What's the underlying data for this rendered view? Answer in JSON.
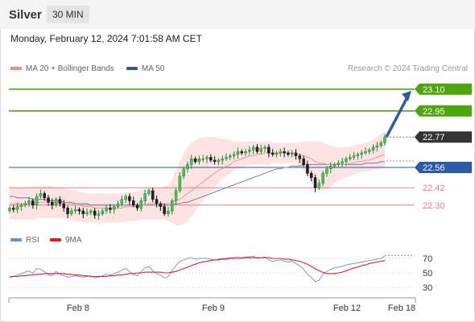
{
  "header": {
    "symbol": "Silver",
    "timeframe": "30 MIN"
  },
  "datetime": "Monday, February 12, 2024 7:01:58 AM CET",
  "legend": {
    "ma20_label": "MA 20 + Bollinger Bands",
    "ma50_label": "MA 50",
    "rsi_label": "RSI",
    "rsi_ma_label": "9MA"
  },
  "credit": "Research © 2024 Trading Central",
  "colors": {
    "green": "#4da60c",
    "blue": "#2a5aa8",
    "red": "#f07c7c",
    "dark": "#333333",
    "bollinger_fill": "#fde3e1",
    "rsi_line": "#6a8fd8",
    "rsi_ma": "#e02020",
    "arrow": "#2a5aa8"
  },
  "chart_data": [
    {
      "type": "line",
      "subtype": "candlestick",
      "title": "",
      "x_ticks": [
        "Feb 8",
        "Feb 9",
        "Feb 12",
        "Feb 18"
      ],
      "ylim": [
        22.16,
        23.16
      ],
      "levels": [
        {
          "value": 23.1,
          "label": "23.10",
          "kind": "resistance",
          "color": "#4da60c"
        },
        {
          "value": 22.95,
          "label": "22.95",
          "kind": "resistance",
          "color": "#4da60c"
        },
        {
          "value": 22.77,
          "label": "22.77",
          "kind": "last",
          "color": "#333333"
        },
        {
          "value": 22.56,
          "label": "22.56",
          "kind": "pivot",
          "color": "#2a5aa8"
        },
        {
          "value": 22.42,
          "label": "22.42",
          "kind": "support",
          "color": "#f07c7c"
        },
        {
          "value": 22.3,
          "label": "22.30",
          "kind": "support",
          "color": "#f07c7c"
        }
      ],
      "close": [
        22.28,
        22.27,
        22.29,
        22.3,
        22.31,
        22.33,
        22.3,
        22.36,
        22.38,
        22.35,
        22.32,
        22.3,
        22.34,
        22.31,
        22.28,
        22.24,
        22.26,
        22.27,
        22.26,
        22.24,
        22.25,
        22.26,
        22.23,
        22.24,
        22.26,
        22.28,
        22.27,
        22.29,
        22.31,
        22.34,
        22.36,
        22.33,
        22.3,
        22.28,
        22.33,
        22.38,
        22.4,
        22.34,
        22.31,
        22.29,
        22.24,
        22.26,
        22.33,
        22.4,
        22.5,
        22.55,
        22.58,
        22.62,
        22.6,
        22.62,
        22.62,
        22.63,
        22.61,
        22.6,
        22.61,
        22.62,
        22.63,
        22.64,
        22.65,
        22.67,
        22.66,
        22.67,
        22.68,
        22.7,
        22.67,
        22.69,
        22.7,
        22.66,
        22.65,
        22.66,
        22.67,
        22.66,
        22.65,
        22.66,
        22.64,
        22.62,
        22.58,
        22.52,
        22.49,
        22.42,
        22.45,
        22.52,
        22.55,
        22.57,
        22.58,
        22.59,
        22.6,
        22.62,
        22.63,
        22.64,
        22.65,
        22.66,
        22.67,
        22.68,
        22.7,
        22.71,
        22.73,
        22.77
      ],
      "ma20": [
        22.31,
        22.31,
        22.31,
        22.31,
        22.31,
        22.31,
        22.31,
        22.32,
        22.32,
        22.32,
        22.32,
        22.32,
        22.32,
        22.32,
        22.32,
        22.31,
        22.31,
        22.3,
        22.3,
        22.29,
        22.29,
        22.29,
        22.28,
        22.28,
        22.28,
        22.28,
        22.28,
        22.28,
        22.28,
        22.28,
        22.29,
        22.29,
        22.29,
        22.29,
        22.3,
        22.3,
        22.31,
        22.31,
        22.31,
        22.31,
        22.31,
        22.31,
        22.32,
        22.33,
        22.34,
        22.36,
        22.38,
        22.4,
        22.42,
        22.44,
        22.46,
        22.48,
        22.5,
        22.52,
        22.54,
        22.55,
        22.57,
        22.58,
        22.6,
        22.61,
        22.62,
        22.63,
        22.64,
        22.64,
        22.65,
        22.65,
        22.66,
        22.66,
        22.66,
        22.66,
        22.66,
        22.66,
        22.66,
        22.66,
        22.66,
        22.65,
        22.64,
        22.63,
        22.62,
        22.6,
        22.59,
        22.59,
        22.58,
        22.58,
        22.58,
        22.58,
        22.58,
        22.58,
        22.59,
        22.59,
        22.6,
        22.6,
        22.61,
        22.61,
        22.62,
        22.63,
        22.64,
        22.65
      ],
      "ma50": [
        22.36,
        22.36,
        22.35,
        22.35,
        22.35,
        22.35,
        22.34,
        22.34,
        22.34,
        22.34,
        22.33,
        22.33,
        22.33,
        22.33,
        22.32,
        22.32,
        22.32,
        22.31,
        22.31,
        22.31,
        22.31,
        22.3,
        22.3,
        22.3,
        22.3,
        22.3,
        22.3,
        22.3,
        22.3,
        22.3,
        22.3,
        22.3,
        22.3,
        22.3,
        22.3,
        22.3,
        22.3,
        22.3,
        22.3,
        22.3,
        22.3,
        22.3,
        22.3,
        22.31,
        22.31,
        22.32,
        22.32,
        22.33,
        22.34,
        22.35,
        22.36,
        22.37,
        22.38,
        22.39,
        22.4,
        22.41,
        22.42,
        22.43,
        22.44,
        22.45,
        22.46,
        22.47,
        22.48,
        22.49,
        22.5,
        22.51,
        22.52,
        22.53,
        22.54,
        22.55,
        22.55,
        22.56,
        22.56,
        22.57,
        22.57,
        22.57,
        22.58,
        22.58,
        22.58,
        22.58,
        22.58,
        22.58,
        22.58,
        22.58,
        22.58,
        22.58,
        22.58,
        22.58,
        22.58,
        22.58,
        22.58,
        22.58,
        22.59,
        22.59,
        22.59,
        22.59,
        22.6,
        22.6
      ],
      "bollinger_upper": [
        22.42,
        22.42,
        22.42,
        22.42,
        22.42,
        22.42,
        22.43,
        22.43,
        22.43,
        22.43,
        22.43,
        22.43,
        22.42,
        22.42,
        22.42,
        22.41,
        22.4,
        22.4,
        22.39,
        22.39,
        22.38,
        22.38,
        22.38,
        22.38,
        22.38,
        22.38,
        22.38,
        22.38,
        22.38,
        22.38,
        22.39,
        22.39,
        22.39,
        22.4,
        22.4,
        22.41,
        22.42,
        22.42,
        22.42,
        22.42,
        22.43,
        22.44,
        22.48,
        22.54,
        22.6,
        22.66,
        22.7,
        22.73,
        22.75,
        22.76,
        22.77,
        22.77,
        22.77,
        22.77,
        22.76,
        22.76,
        22.75,
        22.75,
        22.74,
        22.74,
        22.74,
        22.74,
        22.74,
        22.74,
        22.74,
        22.74,
        22.74,
        22.74,
        22.73,
        22.73,
        22.73,
        22.73,
        22.73,
        22.73,
        22.73,
        22.73,
        22.74,
        22.74,
        22.74,
        22.74,
        22.74,
        22.73,
        22.72,
        22.71,
        22.7,
        22.7,
        22.7,
        22.7,
        22.7,
        22.71,
        22.72,
        22.72,
        22.73,
        22.74,
        22.75,
        22.77,
        22.79,
        22.81
      ],
      "bollinger_lower": [
        22.2,
        22.2,
        22.2,
        22.2,
        22.2,
        22.2,
        22.2,
        22.21,
        22.21,
        22.21,
        22.21,
        22.21,
        22.21,
        22.21,
        22.21,
        22.2,
        22.2,
        22.19,
        22.19,
        22.18,
        22.18,
        22.18,
        22.18,
        22.18,
        22.18,
        22.18,
        22.18,
        22.18,
        22.18,
        22.18,
        22.19,
        22.19,
        22.19,
        22.19,
        22.2,
        22.2,
        22.2,
        22.2,
        22.2,
        22.2,
        22.2,
        22.19,
        22.18,
        22.16,
        22.16,
        22.17,
        22.19,
        22.22,
        22.26,
        22.3,
        22.33,
        22.36,
        22.39,
        22.42,
        22.45,
        22.48,
        22.5,
        22.52,
        22.54,
        22.55,
        22.56,
        22.57,
        22.58,
        22.58,
        22.58,
        22.58,
        22.58,
        22.58,
        22.59,
        22.59,
        22.59,
        22.59,
        22.59,
        22.59,
        22.59,
        22.57,
        22.54,
        22.5,
        22.46,
        22.42,
        22.4,
        22.4,
        22.41,
        22.43,
        22.45,
        22.47,
        22.48,
        22.49,
        22.5,
        22.51,
        22.52,
        22.53,
        22.53,
        22.54,
        22.54,
        22.55,
        22.55,
        22.56
      ],
      "target_arrow": {
        "from": 22.77,
        "to": 23.1
      }
    },
    {
      "type": "line",
      "title": "",
      "y_ticks": [
        70,
        50,
        30
      ],
      "ylim": [
        20,
        80
      ],
      "rsi": [
        43,
        45,
        47,
        49,
        51,
        53,
        49,
        56,
        55,
        52,
        48,
        46,
        52,
        48,
        46,
        44,
        45,
        46,
        45,
        44,
        45,
        46,
        43,
        44,
        46,
        48,
        47,
        49,
        51,
        54,
        56,
        52,
        48,
        46,
        52,
        57,
        59,
        53,
        49,
        47,
        43,
        45,
        53,
        60,
        66,
        68,
        70,
        71,
        69,
        70,
        70,
        70,
        69,
        68,
        69,
        70,
        70,
        71,
        71,
        72,
        71,
        72,
        72,
        73,
        70,
        71,
        72,
        68,
        66,
        67,
        68,
        66,
        65,
        66,
        63,
        60,
        55,
        48,
        44,
        38,
        40,
        48,
        52,
        55,
        57,
        58,
        59,
        61,
        62,
        63,
        64,
        65,
        66,
        67,
        68,
        69,
        70,
        73
      ],
      "rsi_ma": [
        45,
        45,
        45,
        46,
        46,
        47,
        47,
        48,
        48,
        49,
        49,
        49,
        49,
        49,
        49,
        48,
        48,
        47,
        47,
        46,
        46,
        45,
        45,
        45,
        45,
        45,
        46,
        46,
        47,
        47,
        48,
        49,
        49,
        50,
        50,
        51,
        51,
        51,
        51,
        51,
        50,
        50,
        51,
        52,
        54,
        56,
        58,
        60,
        62,
        64,
        65,
        66,
        67,
        68,
        68,
        69,
        69,
        70,
        70,
        70,
        70,
        71,
        71,
        71,
        71,
        71,
        71,
        71,
        70,
        70,
        70,
        69,
        69,
        68,
        67,
        66,
        64,
        62,
        59,
        56,
        53,
        51,
        49,
        49,
        49,
        50,
        51,
        53,
        55,
        57,
        58,
        60,
        61,
        63,
        64,
        65,
        66,
        67
      ]
    }
  ]
}
